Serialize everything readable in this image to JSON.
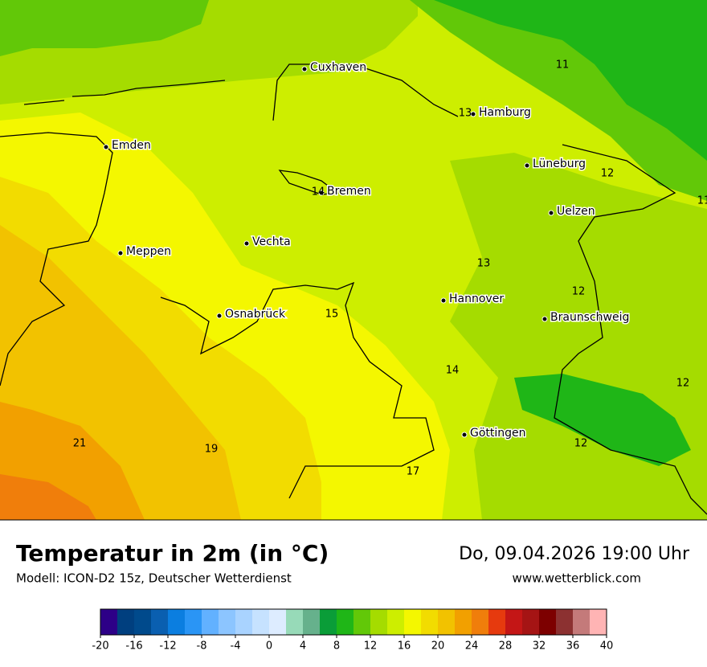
{
  "header": {
    "title": "Temperatur in 2m (in °C)",
    "subtitle": "Modell: ICON-D2 15z, Deutscher Wetterdienst",
    "datetime": "Do, 09.04.2026 19:00 Uhr",
    "website": "www.wetterblick.com"
  },
  "map": {
    "cities": [
      "Cuxhaven",
      "Hamburg",
      "Emden",
      "Lüneburg",
      "Bremen",
      "Uelzen",
      "Vechta",
      "Meppen",
      "Hannover",
      "Osnabrück",
      "Braunschweig",
      "Göttingen"
    ],
    "temperature_labels": [
      11,
      13,
      12,
      14,
      11,
      13,
      12,
      15,
      14,
      12,
      21,
      19,
      12,
      17
    ]
  },
  "legend": {
    "lim": [
      -20,
      40
    ],
    "ticks": [
      -20,
      -16,
      -12,
      -8,
      -4,
      0,
      4,
      8,
      12,
      16,
      20,
      24,
      28,
      32,
      36,
      40
    ],
    "colors": [
      "#2d0087",
      "#003f7f",
      "#004a8c",
      "#0a5fb0",
      "#0b7ee0",
      "#2a95f5",
      "#62b1ff",
      "#8cc5ff",
      "#a9d3ff",
      "#c6e2ff",
      "#ddecff",
      "#97dab8",
      "#66b18c",
      "#0a9d38",
      "#1fb617",
      "#62c808",
      "#a5dc00",
      "#cdee00",
      "#f4f700",
      "#f2dc00",
      "#f2c200",
      "#f2a000",
      "#f07e0b",
      "#e63a0e",
      "#c41616",
      "#a51414",
      "#7d0000",
      "#8c3131",
      "#c47a7a",
      "#ffb4b4"
    ]
  }
}
